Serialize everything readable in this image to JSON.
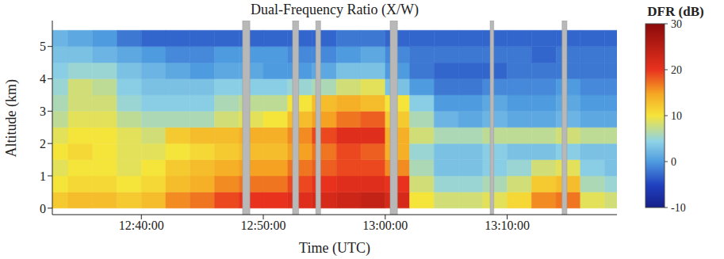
{
  "chart_data": {
    "type": "heatmap",
    "title": "Dual-Frequency Ratio (X/W)",
    "x_label": "Time (UTC)",
    "y_label": "Altitude (km)",
    "xlim": [
      32.7,
      79
    ],
    "xticks": [
      {
        "value": 40,
        "label": "12:40:00"
      },
      {
        "value": 50,
        "label": "12:50:00"
      },
      {
        "value": 60,
        "label": "13:00:00"
      },
      {
        "value": 70,
        "label": "13:10:00"
      }
    ],
    "ylim": [
      -0.2,
      5.8
    ],
    "yticks": [
      0,
      1,
      2,
      3,
      4,
      5
    ],
    "grid": true,
    "x_edges": [
      32.7,
      34,
      36,
      38,
      40,
      42,
      44,
      46,
      48,
      50,
      52,
      54,
      56,
      58,
      60,
      62,
      64,
      66,
      68,
      70,
      72,
      74,
      76,
      78,
      79
    ],
    "y_edges": [
      0,
      0.5,
      1,
      1.5,
      2,
      2.5,
      3,
      3.5,
      4,
      4.5,
      5,
      5.5
    ],
    "cells": [
      [
        12,
        13,
        13,
        12,
        13,
        16,
        17,
        19,
        20,
        20,
        21,
        22,
        23,
        24,
        22,
        10,
        8,
        8,
        9,
        11,
        16,
        17,
        9,
        8
      ],
      [
        10,
        11,
        11,
        10,
        11,
        13,
        14,
        16,
        17,
        17,
        19,
        20,
        21,
        21,
        20,
        8,
        5,
        5,
        6,
        8,
        12,
        13,
        6,
        5
      ],
      [
        9,
        10,
        10,
        9,
        10,
        12,
        13,
        14,
        15,
        15,
        17,
        18,
        19,
        19,
        16,
        6,
        3,
        3,
        4,
        5,
        8,
        9,
        4,
        3
      ],
      [
        10,
        11,
        10,
        9,
        9,
        10,
        11,
        12,
        13,
        13,
        15,
        17,
        19,
        18,
        14,
        5,
        3,
        3,
        4,
        3,
        3,
        4,
        3,
        3
      ],
      [
        9,
        10,
        10,
        9,
        8,
        12,
        13,
        13,
        14,
        14,
        16,
        19,
        21,
        21,
        14,
        8,
        6,
        6,
        7,
        7,
        7,
        8,
        7,
        7
      ],
      [
        7,
        9,
        9,
        7,
        6,
        6,
        6,
        8,
        9,
        10,
        13,
        15,
        17,
        18,
        12,
        6,
        2,
        1,
        2,
        1,
        1,
        2,
        1,
        1
      ],
      [
        6,
        8,
        8,
        5,
        4,
        4,
        4,
        6,
        7,
        7,
        10,
        13,
        14,
        13,
        10,
        4,
        0,
        0,
        1,
        0,
        0,
        1,
        0,
        0
      ],
      [
        5,
        8,
        7,
        4,
        3,
        3,
        3,
        4,
        4,
        4,
        5,
        6,
        8,
        9,
        3,
        0,
        -2,
        -2,
        -1,
        -1,
        -1,
        0,
        -1,
        -1
      ],
      [
        4,
        5,
        5,
        3,
        2,
        1,
        0,
        1,
        1,
        0,
        0,
        1,
        3,
        3,
        0,
        -2,
        -3,
        -3,
        -3,
        -2,
        -2,
        -2,
        -2,
        -2
      ],
      [
        3,
        3,
        2,
        1,
        0,
        -1,
        -1,
        0,
        0,
        0,
        -1,
        -1,
        0,
        1,
        -1,
        -2,
        -2,
        -2,
        -2,
        -2,
        -3,
        -2,
        -2,
        -2
      ],
      [
        2,
        1,
        0,
        -2,
        -3,
        -3,
        -3,
        -3,
        -3,
        -3,
        -3,
        -3,
        -2,
        -2,
        -3,
        -3,
        -3,
        -3,
        -3,
        -3,
        -3,
        -3,
        -3,
        -3
      ]
    ],
    "gaps": [
      [
        48.3,
        48.9
      ],
      [
        52.4,
        52.9
      ],
      [
        54.3,
        54.7
      ],
      [
        60.4,
        61.0
      ],
      [
        68.6,
        68.9
      ],
      [
        74.5,
        74.9
      ]
    ],
    "colorbar": {
      "label": "DFR (dB)",
      "range": [
        -10,
        30
      ],
      "ticks": [
        -10,
        0,
        10,
        20,
        30
      ]
    }
  }
}
